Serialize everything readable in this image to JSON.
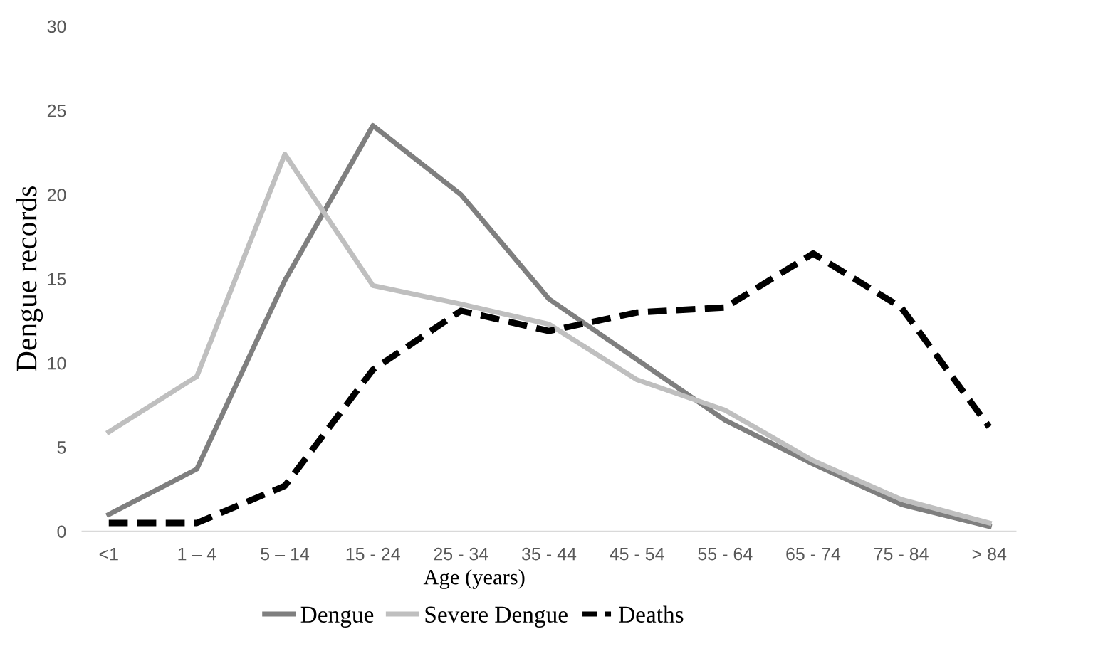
{
  "chart_data": {
    "type": "line",
    "xlabel": "Age (years)",
    "ylabel": "Dengue records",
    "categories": [
      "<1",
      "1 – 4",
      "5 – 14",
      "15 - 24",
      "25 - 34",
      "35 - 44",
      "45 - 54",
      "55 - 64",
      "65 - 74",
      "75 - 84",
      "> 84"
    ],
    "series": [
      {
        "name": "Dengue",
        "color": "#7f7f7f",
        "line_style": "solid",
        "values": [
          1.0,
          3.7,
          14.9,
          24.1,
          20.0,
          13.8,
          10.2,
          6.6,
          4.0,
          1.6,
          0.3
        ]
      },
      {
        "name": "Severe Dengue",
        "color": "#bfbfbf",
        "line_style": "solid",
        "values": [
          5.9,
          9.2,
          22.4,
          14.6,
          13.5,
          12.3,
          9.0,
          7.2,
          4.2,
          1.9,
          0.5
        ]
      },
      {
        "name": "Deaths",
        "color": "#000000",
        "line_style": "dashed",
        "values": [
          0.5,
          0.5,
          2.7,
          9.6,
          13.1,
          11.9,
          13.0,
          13.3,
          16.5,
          13.3,
          6.2
        ]
      }
    ],
    "ylim": [
      0,
      30
    ],
    "yticks": [
      0,
      5,
      10,
      15,
      20,
      25,
      30
    ],
    "grid": false,
    "legend": "bottom",
    "marker": "none"
  }
}
